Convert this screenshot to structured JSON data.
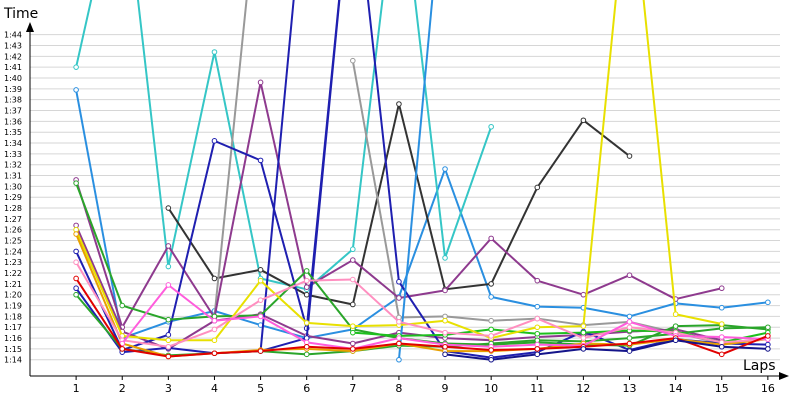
{
  "chart_data": {
    "type": "line",
    "ylabel": "Time",
    "xlabel": "Laps",
    "x": [
      1,
      2,
      3,
      4,
      5,
      6,
      7,
      8,
      9,
      10,
      11,
      12,
      13,
      14,
      15,
      16
    ],
    "x_tick_labels": [
      "1",
      "2",
      "3",
      "4",
      "5",
      "6",
      "7",
      "8",
      "9",
      "10",
      "11",
      "12",
      "13",
      "14",
      "15",
      "16"
    ],
    "y_tick_values": [
      74,
      75,
      76,
      77,
      78,
      79,
      80,
      81,
      82,
      83,
      84,
      85,
      86,
      87,
      88,
      89,
      90,
      91,
      92,
      93,
      94,
      95,
      96,
      97,
      98,
      99,
      100,
      101,
      102,
      103,
      104
    ],
    "y_tick_labels": [
      "1:14",
      "1:15",
      "1:16",
      "1:17",
      "1:18",
      "1:19",
      "1:20",
      "1:21",
      "1:22",
      "1:23",
      "1:24",
      "1:25",
      "1:26",
      "1:27",
      "1:28",
      "1:29",
      "1:30",
      "1:31",
      "1:32",
      "1:33",
      "1:34",
      "1:35",
      "1:36",
      "1:37",
      "1:38",
      "1:39",
      "1:40",
      "1:41",
      "1:42",
      "1:43",
      "1:44"
    ],
    "xlim": [
      0,
      16.35
    ],
    "ylim": [
      72.5,
      104.8
    ],
    "grid": "horizontal",
    "series": [
      {
        "color": "#35c6c6",
        "values": [
          101.0,
          120,
          null,
          null,
          null,
          null,
          null,
          null,
          null,
          null,
          null,
          null,
          null,
          null,
          null,
          null
        ]
      },
      {
        "color": "#2a8fe0",
        "values": [
          98.9,
          76.0,
          77.5,
          78.5,
          77.2,
          76.0,
          76.8,
          79.8,
          91.6,
          79.8,
          78.9,
          78.8,
          78.0,
          79.2,
          78.8,
          79.3
        ]
      },
      {
        "color": "#35c6c6",
        "values": [
          null,
          120,
          82.6,
          102.4,
          81.5,
          80.5,
          84.2,
          120,
          83.4,
          95.5,
          null,
          null,
          null,
          null,
          null,
          null
        ]
      },
      {
        "color": "#333333",
        "values": [
          null,
          null,
          88.0,
          81.5,
          82.3,
          80.0,
          79.1,
          97.6,
          80.5,
          81.0,
          89.9,
          96.1,
          92.8,
          null,
          null,
          null
        ]
      },
      {
        "color": "#999999",
        "values": [
          null,
          null,
          null,
          78.0,
          120,
          null,
          101.6,
          77.9,
          78.0,
          77.6,
          77.8,
          77.2,
          77.5,
          76.5,
          75.5,
          76.0
        ]
      },
      {
        "color": "#8e3a8e",
        "values": [
          90.6,
          77.0,
          84.5,
          77.9,
          99.6,
          80.7,
          83.2,
          79.7,
          80.4,
          85.2,
          81.3,
          80.0,
          81.8,
          79.6,
          80.6,
          null
        ]
      },
      {
        "color": "#8e3a8e",
        "values": [
          86.4,
          76.6,
          75.0,
          77.6,
          78.2,
          76.2,
          75.5,
          76.5,
          76.0,
          75.8,
          76.1,
          76.3,
          76.6,
          76.8,
          75.8,
          null
        ]
      },
      {
        "color": "#1f1fb0",
        "values": [
          84.0,
          74.9,
          76.3,
          94.2,
          92.4,
          76.9,
          120,
          81.2,
          74.8,
          74.2,
          74.7,
          76.6,
          74.9,
          75.9,
          75.5,
          75.4
        ]
      },
      {
        "color": "#1f1fb0",
        "values": [
          80.6,
          74.7,
          75.1,
          74.6,
          74.8,
          76.0,
          120,
          null,
          null,
          null,
          null,
          null,
          null,
          null,
          null,
          null
        ]
      },
      {
        "color": "#1f1fb0",
        "values": [
          null,
          null,
          null,
          null,
          74.8,
          120,
          null,
          null,
          null,
          null,
          null,
          null,
          null,
          null,
          null,
          null
        ]
      },
      {
        "color": "#2a8fe0",
        "values": [
          null,
          null,
          null,
          null,
          null,
          null,
          null,
          74.0,
          120,
          null,
          null,
          null,
          null,
          null,
          null,
          null
        ]
      },
      {
        "color": "#2aa52a",
        "values": [
          90.3,
          79.0,
          77.7,
          78.0,
          78.1,
          82.2,
          76.8,
          76.0,
          75.5,
          75.4,
          75.6,
          75.4,
          75.3,
          77.1,
          77.2,
          76.8
        ]
      },
      {
        "color": "#2aa52a",
        "values": [
          80.0,
          75.0,
          74.4,
          74.6,
          74.8,
          74.5,
          74.8,
          75.3,
          75.2,
          75.5,
          75.8,
          75.7,
          76.0,
          76.4,
          76.9,
          77.0
        ]
      },
      {
        "color": "#1dc01d",
        "values": [
          null,
          null,
          null,
          null,
          null,
          null,
          76.5,
          76.2,
          76.3,
          76.8,
          76.4,
          76.5,
          76.7,
          76.6,
          75.6,
          76.5
        ]
      },
      {
        "color": "#e8e000",
        "values": [
          86.0,
          76.2,
          75.8,
          75.8,
          81.3,
          77.4,
          77.1,
          77.2,
          77.6,
          76.0,
          77.0,
          77.1,
          120,
          78.2,
          77.3,
          null
        ]
      },
      {
        "color": "#e8a000",
        "values": [
          85.6,
          75.5,
          74.3,
          74.6,
          74.9,
          75.0,
          74.8,
          75.5,
          74.8,
          74.8,
          75.0,
          75.5,
          75.4,
          75.9,
          75.4,
          75.9
        ]
      },
      {
        "color": "#ff8fc0",
        "values": [
          83.0,
          75.8,
          75.2,
          76.8,
          79.5,
          81.3,
          81.4,
          77.5,
          76.5,
          76.2,
          77.8,
          76.0,
          77.0,
          76.5,
          75.6,
          75.9
        ]
      },
      {
        "color": "#ff5cdc",
        "values": [
          null,
          75.5,
          80.9,
          77.6,
          78.0,
          75.6,
          75.0,
          76.0,
          75.4,
          75.2,
          75.4,
          75.3,
          77.5,
          76.2,
          76.1,
          75.9
        ]
      },
      {
        "color": "#e00000",
        "values": [
          81.5,
          75.0,
          74.3,
          74.6,
          74.8,
          75.2,
          75.0,
          75.5,
          75.2,
          74.9,
          75.0,
          75.2,
          75.5,
          76.0,
          74.5,
          76.2
        ]
      },
      {
        "color": "#14148a",
        "values": [
          null,
          null,
          null,
          null,
          null,
          null,
          null,
          null,
          74.5,
          74.0,
          74.5,
          75.0,
          74.8,
          75.8,
          75.2,
          75.0
        ]
      }
    ]
  }
}
